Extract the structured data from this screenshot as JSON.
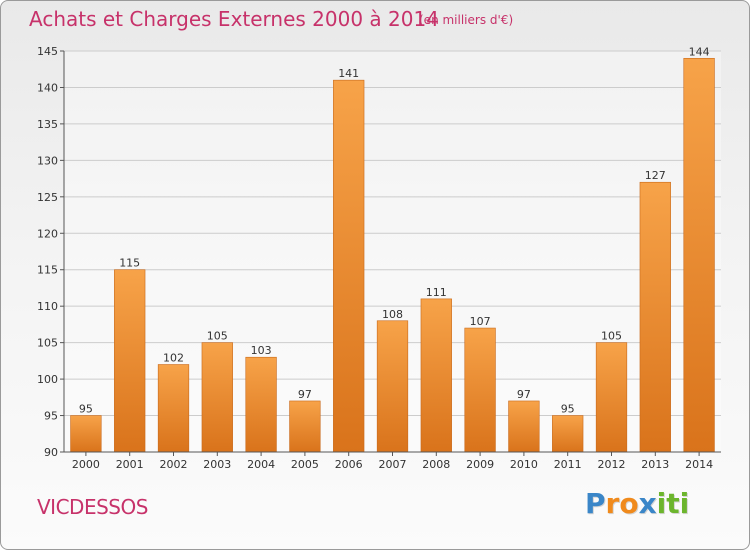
{
  "header": {
    "title": "Achats et Charges Externes 2000 à 2014",
    "unit": "(en milliers d'€)"
  },
  "footer": {
    "commune": "VICDESSOS",
    "brand_letters": [
      "P",
      "r",
      "o",
      "x",
      "i",
      "t",
      "i"
    ],
    "brand_colors": [
      "#3a86c8",
      "#f08a1c",
      "#f08a1c",
      "#3a86c8",
      "#6cb52d",
      "#6cb52d",
      "#6cb52d"
    ]
  },
  "colors": {
    "bar_light": "#f7a349",
    "bar_dark": "#d9731b",
    "title": "#c7326a",
    "grid": "#cccccc"
  },
  "chart_data": {
    "type": "bar",
    "title": "Achats et Charges Externes 2000 à 2014",
    "subtitle": "(en milliers d'€)",
    "categories": [
      "2000",
      "2001",
      "2002",
      "2003",
      "2004",
      "2005",
      "2006",
      "2007",
      "2008",
      "2009",
      "2010",
      "2011",
      "2012",
      "2013",
      "2014"
    ],
    "values": [
      95,
      115,
      102,
      105,
      103,
      97,
      141,
      108,
      111,
      107,
      97,
      95,
      105,
      127,
      144
    ],
    "ylim": [
      90,
      145
    ],
    "yticks": [
      90,
      95,
      100,
      105,
      110,
      115,
      120,
      125,
      130,
      135,
      140,
      145
    ],
    "grid": true,
    "xlabel": "",
    "ylabel": ""
  }
}
